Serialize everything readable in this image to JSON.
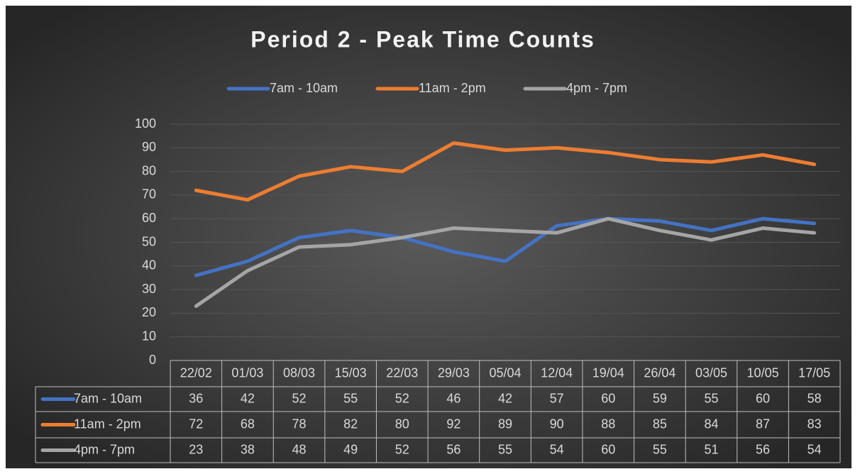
{
  "chart_data": {
    "type": "line",
    "title": "Period 2 - Peak Time Counts",
    "categories": [
      "22/02",
      "01/03",
      "08/03",
      "15/03",
      "22/03",
      "29/03",
      "05/04",
      "12/04",
      "19/04",
      "26/04",
      "03/05",
      "10/05",
      "17/05"
    ],
    "series": [
      {
        "name": "7am - 10am",
        "color": "#4472c4",
        "values": [
          36,
          42,
          52,
          55,
          52,
          46,
          42,
          57,
          60,
          59,
          55,
          60,
          58
        ]
      },
      {
        "name": "11am - 2pm",
        "color": "#ed7d31",
        "values": [
          72,
          68,
          78,
          82,
          80,
          92,
          89,
          90,
          88,
          85,
          84,
          87,
          83
        ]
      },
      {
        "name": "4pm - 7pm",
        "color": "#a5a5a5",
        "values": [
          23,
          38,
          48,
          49,
          52,
          56,
          55,
          54,
          60,
          55,
          51,
          56,
          54
        ]
      }
    ],
    "ylim": [
      0,
      100
    ],
    "yticks": [
      0,
      10,
      20,
      30,
      40,
      50,
      60,
      70,
      80,
      90,
      100
    ],
    "grid": true,
    "legend": "top",
    "data_table": true
  }
}
